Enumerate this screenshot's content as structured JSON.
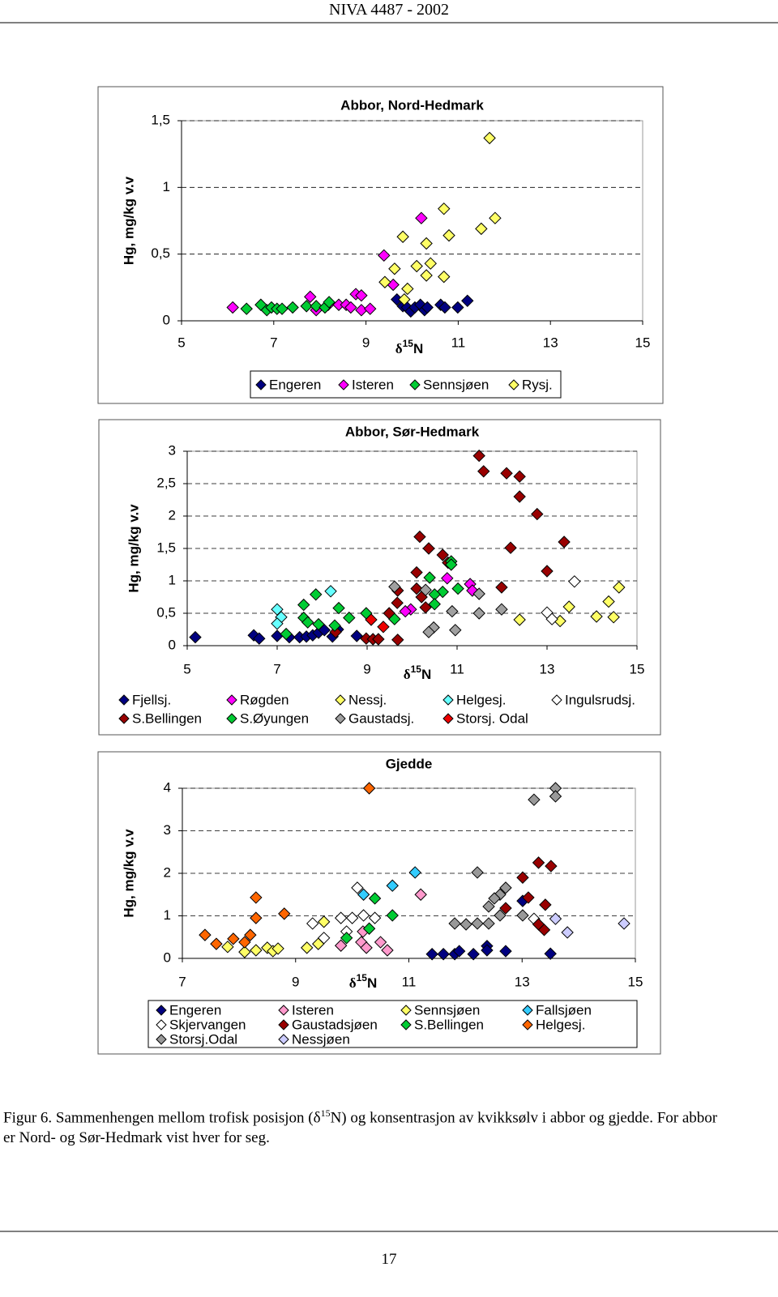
{
  "header": "NIVA  4487 - 2002",
  "chart_data": [
    {
      "type": "scatter",
      "title": "Abbor, Nord-Hedmark",
      "y_label": "Hg, mg/kg v.v",
      "x_label_parts": [
        "δ",
        "15",
        "N"
      ],
      "xlim": [
        5,
        15
      ],
      "ylim": [
        0,
        1.5
      ],
      "xticks": [
        5,
        7,
        9,
        11,
        13,
        15
      ],
      "yticks": [
        0,
        {
          "value": 0.5,
          "label": "0,5"
        },
        1,
        {
          "value": 1.5,
          "label": "1,5"
        }
      ],
      "grid": true,
      "series": [
        {
          "name": "Engeren",
          "color": "#000080",
          "x": [
            9.67,
            9.8,
            9.89,
            9.97,
            10.06,
            10.18,
            10.27,
            10.33,
            10.62,
            10.71,
            10.99,
            11.2
          ],
          "values": [
            0.16,
            0.11,
            0.1,
            0.07,
            0.1,
            0.12,
            0.08,
            0.1,
            0.12,
            0.1,
            0.1,
            0.15
          ]
        },
        {
          "name": "Isteren",
          "color": "#ff00ff",
          "x": [
            6.11,
            7.79,
            7.92,
            8.18,
            8.41,
            8.57,
            8.67,
            8.78,
            8.9,
            8.9,
            9.09,
            9.39,
            9.59,
            10.2
          ],
          "values": [
            0.1,
            0.18,
            0.08,
            0.12,
            0.12,
            0.12,
            0.1,
            0.2,
            0.19,
            0.08,
            0.09,
            0.49,
            0.27,
            0.77
          ]
        },
        {
          "name": "Sennsjøen",
          "color": "#00cc33",
          "x": [
            6.41,
            6.72,
            6.85,
            6.95,
            7.07,
            7.18,
            7.41,
            7.71,
            7.92,
            8.11,
            8.2
          ],
          "values": [
            0.09,
            0.12,
            0.08,
            0.1,
            0.09,
            0.09,
            0.1,
            0.11,
            0.11,
            0.1,
            0.14
          ]
        },
        {
          "name": "Rysj.",
          "color": "#ffff66",
          "x": [
            11.68,
            11.8,
            11.5,
            10.69,
            10.8,
            10.31,
            9.8,
            10.1,
            10.4,
            9.62,
            10.31,
            10.69,
            9.41,
            9.9,
            9.83
          ],
          "values": [
            1.37,
            0.77,
            0.69,
            0.84,
            0.64,
            0.58,
            0.63,
            0.41,
            0.43,
            0.39,
            0.34,
            0.33,
            0.29,
            0.24,
            0.16
          ]
        }
      ]
    },
    {
      "type": "scatter",
      "title": "Abbor, Sør-Hedmark",
      "y_label": "Hg, mg/kg v.v",
      "x_label_parts": [
        "δ",
        "15",
        "N"
      ],
      "xlim": [
        5,
        15
      ],
      "ylim": [
        0,
        3
      ],
      "xticks": [
        5,
        7,
        9,
        11,
        13,
        15
      ],
      "yticks": [
        0,
        {
          "value": 0.5,
          "label": "0,5"
        },
        1,
        {
          "value": 1.5,
          "label": "1,5"
        },
        2,
        {
          "value": 2.5,
          "label": "2,5"
        },
        3
      ],
      "grid": true,
      "series": [
        {
          "name": "Fjellsj.",
          "color": "#000080",
          "x": [
            5.18,
            6.48,
            6.6,
            7.0,
            7.27,
            7.5,
            7.65,
            7.79,
            7.92,
            8.05,
            8.23,
            8.35,
            8.77
          ],
          "values": [
            0.13,
            0.16,
            0.11,
            0.15,
            0.13,
            0.13,
            0.14,
            0.16,
            0.2,
            0.24,
            0.14,
            0.25,
            0.15
          ]
        },
        {
          "name": "S.Bellingen",
          "color": "#990000",
          "x": [
            11.49,
            11.59,
            12.1,
            12.39,
            12.39,
            12.78,
            13.38,
            12.19,
            10.17,
            10.37,
            10.68,
            10.8,
            13.0,
            11.99,
            10.1,
            10.1,
            9.68,
            9.67,
            9.49,
            10.21,
            10.3,
            8.98,
            9.13,
            9.25,
            9.68,
            8.3
          ],
          "values": [
            2.93,
            2.69,
            2.66,
            2.61,
            2.3,
            2.03,
            1.6,
            1.51,
            1.68,
            1.5,
            1.4,
            1.28,
            1.15,
            0.9,
            1.13,
            0.88,
            0.85,
            0.66,
            0.5,
            0.75,
            0.59,
            0.11,
            0.1,
            0.1,
            0.09,
            0.21
          ]
        },
        {
          "name": "Røgden",
          "color": "#ff00ff",
          "x": [
            10.78,
            11.29,
            11.34,
            9.97,
            9.85
          ],
          "values": [
            1.04,
            0.95,
            0.85,
            0.56,
            0.53
          ]
        },
        {
          "name": "S.Øyungen",
          "color": "#00cc33",
          "x": [
            10.87,
            10.39,
            10.87,
            11.02,
            10.68,
            10.5,
            10.5,
            7.59,
            7.86,
            8.37,
            7.59,
            7.68,
            7.92,
            8.6,
            8.98,
            9.61,
            7.2,
            8.28
          ],
          "values": [
            1.3,
            1.05,
            1.25,
            0.88,
            0.83,
            0.79,
            0.64,
            0.63,
            0.79,
            0.58,
            0.43,
            0.36,
            0.33,
            0.43,
            0.5,
            0.41,
            0.18,
            0.31
          ]
        },
        {
          "name": "Nessj.",
          "color": "#ffff66",
          "x": [
            14.6,
            14.37,
            13.49,
            14.48,
            14.1,
            12.39,
            13.29
          ],
          "values": [
            0.9,
            0.68,
            0.6,
            0.44,
            0.45,
            0.4,
            0.38
          ]
        },
        {
          "name": "Gaustadsj.",
          "color": "#a0a0a0",
          "x": [
            9.61,
            10.3,
            10.89,
            11.49,
            11.99,
            11.49,
            10.48,
            10.37,
            10.96
          ],
          "values": [
            0.91,
            0.86,
            0.53,
            0.8,
            0.56,
            0.5,
            0.28,
            0.21,
            0.24
          ]
        },
        {
          "name": "Helgesj.",
          "color": "#66ffff",
          "x": [
            7.0,
            7.09,
            8.19,
            7.0
          ],
          "values": [
            0.56,
            0.44,
            0.84,
            0.34
          ]
        },
        {
          "name": "Storsj. Odal",
          "color": "#ee0000",
          "x": [
            9.09,
            9.36
          ],
          "values": [
            0.4,
            0.29
          ]
        },
        {
          "name": "Ingulsrudsj.",
          "color": "#ffffff",
          "x": [
            13.61,
            13.0,
            13.11
          ],
          "values": [
            0.99,
            0.51,
            0.41
          ]
        }
      ]
    },
    {
      "type": "scatter",
      "title": "Gjedde",
      "y_label": "Hg, mg/kg v.v",
      "x_label_parts": [
        "δ",
        "15",
        "N"
      ],
      "xlim": [
        7,
        15
      ],
      "ylim": [
        0,
        4
      ],
      "xticks": [
        7,
        9,
        11,
        13,
        15
      ],
      "yticks": [
        0,
        1,
        2,
        3,
        4
      ],
      "grid": true,
      "series": [
        {
          "name": "Engeren",
          "color": "#000080",
          "x": [
            11.41,
            11.61,
            11.81,
            11.89,
            12.14,
            12.38,
            12.38,
            12.71,
            13.5,
            13.01
          ],
          "values": [
            0.1,
            0.1,
            0.1,
            0.17,
            0.1,
            0.29,
            0.19,
            0.17,
            0.11,
            1.35
          ]
        },
        {
          "name": "Isteren",
          "color": "#ff99cc",
          "x": [
            11.21,
            9.8,
            10.16,
            10.25,
            10.5,
            10.62,
            10.19
          ],
          "values": [
            1.5,
            0.3,
            0.38,
            0.25,
            0.38,
            0.19,
            0.63
          ]
        },
        {
          "name": "Sennsjøen",
          "color": "#ffff66",
          "x": [
            7.8,
            8.1,
            8.3,
            8.5,
            8.6,
            8.69,
            9.2,
            9.4,
            9.5
          ],
          "values": [
            0.27,
            0.15,
            0.19,
            0.25,
            0.17,
            0.23,
            0.25,
            0.34,
            0.86
          ]
        },
        {
          "name": "Fallsjøen",
          "color": "#33ccff",
          "x": [
            10.2,
            10.71,
            11.11
          ],
          "values": [
            1.5,
            1.71,
            2.02
          ]
        },
        {
          "name": "Skjervangen",
          "color": "#ffffff",
          "x": [
            10.09,
            9.3,
            9.8,
            10.0,
            10.2,
            9.9,
            10.4,
            9.5,
            13.21
          ],
          "values": [
            1.66,
            0.82,
            0.95,
            0.95,
            1.01,
            0.63,
            0.95,
            0.48,
            0.93
          ]
        },
        {
          "name": "Gaustadsjøen",
          "color": "#990000",
          "x": [
            13.29,
            13.51,
            13.01,
            13.11,
            13.41,
            12.71,
            13.29,
            13.39
          ],
          "values": [
            2.25,
            2.17,
            1.9,
            1.43,
            1.26,
            1.18,
            0.8,
            0.67
          ]
        },
        {
          "name": "S.Bellingen",
          "color": "#00cc33",
          "x": [
            10.4,
            10.71,
            10.3,
            9.9
          ],
          "values": [
            1.41,
            1.01,
            0.7,
            0.48
          ]
        },
        {
          "name": "Helgesj.",
          "color": "#ff6600",
          "x": [
            10.3,
            8.3,
            8.8,
            8.3,
            7.4,
            7.6,
            7.9,
            8.2,
            8.1
          ],
          "values": [
            4.0,
            1.43,
            1.05,
            0.95,
            0.55,
            0.34,
            0.46,
            0.55,
            0.38
          ]
        },
        {
          "name": "Storsj.Odal",
          "color": "#999999",
          "x": [
            13.59,
            13.59,
            13.21,
            12.21,
            12.71,
            12.61,
            12.51,
            12.41,
            12.61,
            11.81,
            12.01,
            12.21,
            12.41,
            13.01
          ],
          "values": [
            4.0,
            3.81,
            3.73,
            2.02,
            1.66,
            1.5,
            1.41,
            1.22,
            1.01,
            0.82,
            0.8,
            0.82,
            0.82,
            1.01
          ]
        },
        {
          "name": "Nessjøen",
          "color": "#ccccff",
          "x": [
            13.8,
            14.8,
            13.59
          ],
          "values": [
            0.61,
            0.82,
            0.93
          ]
        }
      ]
    }
  ],
  "caption": {
    "before": "Figur 6. Sammenhengen mellom trofisk posisjon (δ",
    "sup": "15",
    "after": "N) og konsentrasjon av kvikksølv i abbor og gjedde. For abbor er Nord- og Sør-Hedmark vist hver for seg."
  },
  "page_number": "17"
}
